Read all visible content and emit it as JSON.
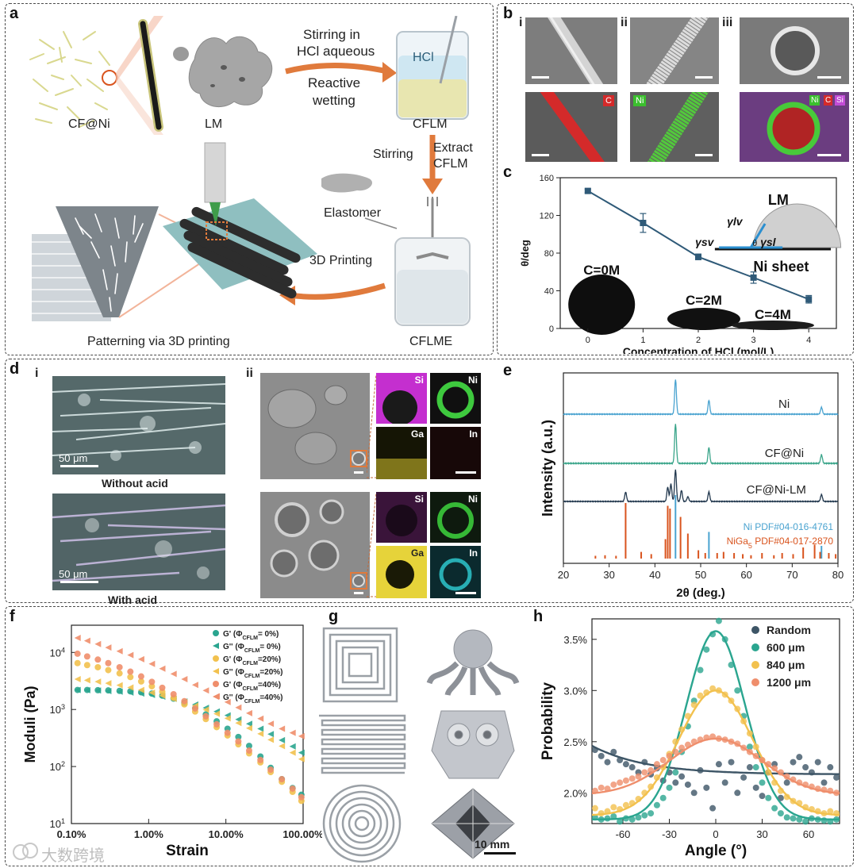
{
  "panels": {
    "a": {
      "label": "a",
      "item_cfni": "CF@Ni",
      "item_lm": "LM",
      "step1_line1": "Stirring in",
      "step1_line2": "HCl aqueous",
      "step1_line3": "Reactive",
      "step1_line4": "wetting",
      "beaker_label": "HCl",
      "item_cflm": "CFLM",
      "step2_left": "Stirring",
      "step2_right1": "Extract",
      "step2_right2": "CFLM",
      "item_elastomer": "Elastomer",
      "step3": "3D Printing",
      "item_cflme": "CFLME",
      "caption": "Patterning via 3D printing"
    },
    "b": {
      "label": "b",
      "sub_i": "i",
      "sub_ii": "ii",
      "sub_iii": "iii",
      "tag_c": "C",
      "tag_ni": "Ni",
      "tag_ni2": "Ni",
      "tag_c2": "C",
      "tag_si": "Si"
    },
    "c": {
      "label": "c",
      "inset_lm": "LM",
      "inset_glv": "γlv",
      "inset_gsv": "γsv",
      "inset_theta": "θ",
      "inset_gsl": "γsl",
      "inset_ni": "Ni sheet",
      "drop0": "C=0M",
      "drop2": "C=2M",
      "drop4": "C=4M"
    },
    "d": {
      "label": "d",
      "sub_i": "i",
      "sub_ii": "ii",
      "scale_top": "50 μm",
      "scale_bot": "50 μm",
      "cap_top": "Without acid",
      "cap_bot": "With acid",
      "map_si": "Si",
      "map_ni": "Ni",
      "map_ga": "Ga",
      "map_in": "In",
      "map_si2": "Si",
      "map_ni2": "Ni",
      "map_ga2": "Ga",
      "map_in2": "In"
    },
    "e": {
      "label": "e",
      "curve_ni": "Ni",
      "curve_cfni": "CF@Ni",
      "curve_cfnilm": "CF@Ni-LM",
      "ref_ni": "Ni PDF#04-016-4761",
      "ref_niga": "NiGa",
      "ref_niga_sub": "5",
      "ref_niga_tail": " PDF#04-017-2870"
    },
    "f": {
      "label": "f"
    },
    "g": {
      "label": "g",
      "scale": "10 mm"
    },
    "h": {
      "label": "h"
    }
  },
  "watermark": "大数跨境",
  "chart_data": [
    {
      "id": "c",
      "type": "line",
      "title": "",
      "xlabel": "Concentration of HCl (mol/L)",
      "ylabel": "θ/deg",
      "xlim": [
        -0.5,
        4.5
      ],
      "ylim": [
        0,
        160
      ],
      "xticks": [
        0,
        1,
        2,
        3,
        4
      ],
      "yticks": [
        0,
        40,
        80,
        120,
        160
      ],
      "x": [
        0,
        1,
        2,
        3,
        4
      ],
      "values": [
        146,
        112,
        76,
        54,
        31
      ],
      "errors": [
        2,
        10,
        3,
        6,
        4
      ],
      "color": "#2f5a78"
    },
    {
      "id": "e",
      "type": "line",
      "xlabel": "2θ (deg.)",
      "ylabel": "Intensity (a.u.)",
      "xlim": [
        20,
        80
      ],
      "xticks": [
        20,
        30,
        40,
        50,
        60,
        70,
        80
      ],
      "series": [
        {
          "name": "Ni",
          "color": "#4aa3d0",
          "peaks": [
            [
              44.5,
              1.0
            ],
            [
              51.8,
              0.4
            ],
            [
              76.4,
              0.2
            ]
          ]
        },
        {
          "name": "CF@Ni",
          "color": "#3aa58a",
          "peaks": [
            [
              44.5,
              1.0
            ],
            [
              51.8,
              0.4
            ],
            [
              76.4,
              0.22
            ]
          ]
        },
        {
          "name": "CF@Ni-LM",
          "color": "#22384e",
          "peaks": [
            [
              33.6,
              0.3
            ],
            [
              42.8,
              0.45
            ],
            [
              43.5,
              0.55
            ],
            [
              44.5,
              1.0
            ],
            [
              45.8,
              0.35
            ],
            [
              47.2,
              0.15
            ],
            [
              51.8,
              0.3
            ],
            [
              76.4,
              0.22
            ]
          ]
        }
      ],
      "references": [
        {
          "name": "Ni PDF#04-016-4761",
          "color": "#4aa3d0",
          "lines": [
            [
              44.5,
              1.0
            ],
            [
              51.8,
              0.42
            ],
            [
              76.4,
              0.2
            ]
          ]
        },
        {
          "name": "NiGa5 PDF#04-017-2870",
          "color": "#d9541e",
          "lines": [
            [
              27.0,
              0.05
            ],
            [
              29.1,
              0.06
            ],
            [
              31.5,
              0.05
            ],
            [
              33.6,
              1.0
            ],
            [
              37.0,
              0.12
            ],
            [
              39.2,
              0.08
            ],
            [
              42.3,
              0.35
            ],
            [
              42.8,
              0.95
            ],
            [
              43.3,
              0.9
            ],
            [
              45.6,
              0.75
            ],
            [
              47.2,
              0.45
            ],
            [
              49.5,
              0.15
            ],
            [
              51.0,
              0.1
            ],
            [
              53.6,
              0.1
            ],
            [
              55.0,
              0.12
            ],
            [
              57.3,
              0.1
            ],
            [
              59.2,
              0.08
            ],
            [
              61.0,
              0.06
            ],
            [
              63.4,
              0.1
            ],
            [
              66.0,
              0.06
            ],
            [
              67.8,
              0.1
            ],
            [
              70.2,
              0.08
            ],
            [
              72.4,
              0.2
            ],
            [
              74.9,
              0.25
            ],
            [
              76.1,
              0.12
            ],
            [
              78.0,
              0.1
            ],
            [
              79.5,
              0.08
            ]
          ]
        }
      ]
    },
    {
      "id": "f",
      "type": "scatter",
      "xlabel": "Strain",
      "ylabel": "Moduli (Pa)",
      "xscale": "log",
      "yscale": "log",
      "xlim": [
        0.1,
        100
      ],
      "ylim": [
        10,
        30000
      ],
      "xtick_labels": [
        "0.10%",
        "1.00%",
        "10.00%",
        "100.00%"
      ],
      "ytick_labels": [
        "10",
        "10",
        "10",
        "10"
      ],
      "ytick_exps": [
        "1",
        "2",
        "3",
        "4"
      ],
      "legend_position": "top-right",
      "x": [
        0.12,
        0.16,
        0.22,
        0.3,
        0.42,
        0.58,
        0.8,
        1.1,
        1.5,
        2.1,
        2.9,
        4.0,
        5.5,
        7.6,
        10.5,
        14.5,
        20,
        28,
        38,
        53,
        73,
        95
      ],
      "series": [
        {
          "name": "G' (ΦCFLM= 0%)",
          "label_main": "G' (Φ",
          "label_sub": "CFLM",
          "label_tail": "= 0%)",
          "marker": "circle",
          "color": "#2aa58f",
          "values": [
            2200,
            2200,
            2180,
            2160,
            2120,
            2080,
            2000,
            1900,
            1750,
            1550,
            1300,
            1050,
            820,
            620,
            460,
            330,
            230,
            150,
            95,
            60,
            42,
            32
          ]
        },
        {
          "name": "G'' (ΦCFLM= 0%)",
          "label_main": "G'' (Φ",
          "label_sub": "CFLM",
          "label_tail": "= 0%)",
          "marker": "triangle",
          "color": "#2aa58f",
          "values": [
            2200,
            2180,
            2150,
            2100,
            2050,
            1980,
            1900,
            1800,
            1680,
            1540,
            1380,
            1220,
            1070,
            920,
            790,
            670,
            560,
            460,
            370,
            290,
            225,
            175
          ]
        },
        {
          "name": "G' (ΦCFLM=20%)",
          "label_main": "G' (Φ",
          "label_sub": "CFLM",
          "label_tail": "=20%)",
          "marker": "circle",
          "color": "#f2c14e",
          "values": [
            6500,
            6000,
            5500,
            4900,
            4300,
            3700,
            3100,
            2550,
            2050,
            1600,
            1230,
            920,
            680,
            490,
            350,
            245,
            170,
            118,
            80,
            54,
            36,
            25
          ]
        },
        {
          "name": "G'' (ΦCFLM=20%)",
          "label_main": "G'' (Φ",
          "label_sub": "CFLM",
          "label_tail": "=20%)",
          "marker": "triangle",
          "color": "#f2c14e",
          "values": [
            3400,
            3250,
            3080,
            2880,
            2660,
            2430,
            2200,
            1970,
            1750,
            1540,
            1340,
            1160,
            990,
            840,
            700,
            580,
            470,
            375,
            295,
            228,
            175,
            135
          ]
        },
        {
          "name": "G' (ΦCFLM=40%)",
          "label_main": "G' (Φ",
          "label_sub": "CFLM",
          "label_tail": "=40%)",
          "marker": "circle",
          "color": "#ef8e6c",
          "values": [
            9500,
            8500,
            7500,
            6500,
            5500,
            4600,
            3800,
            3050,
            2400,
            1850,
            1400,
            1040,
            760,
            550,
            390,
            275,
            190,
            130,
            88,
            60,
            41,
            29
          ]
        },
        {
          "name": "G'' (ΦCFLM=40%)",
          "label_main": "G'' (Φ",
          "label_sub": "CFLM",
          "label_tail": "=40%)",
          "marker": "triangle",
          "color": "#ef8e6c",
          "values": [
            18000,
            16000,
            14000,
            12200,
            10500,
            9000,
            7600,
            6300,
            5200,
            4200,
            3400,
            2700,
            2150,
            1700,
            1350,
            1080,
            860,
            690,
            560,
            460,
            390,
            340
          ]
        }
      ]
    },
    {
      "id": "h",
      "type": "line",
      "xlabel": "Angle (°)",
      "ylabel": "Probability",
      "xlim": [
        -80,
        80
      ],
      "ylim": [
        1.7,
        3.7
      ],
      "xticks": [
        -60,
        -30,
        0,
        30,
        60
      ],
      "yticks": [
        2.0,
        2.5,
        3.0,
        3.5
      ],
      "ytick_labels": [
        "2.0%",
        "2.5%",
        "3.0%",
        "3.5%"
      ],
      "legend_position": "top-right",
      "series": [
        {
          "name": "Random",
          "color": "#3d5566",
          "model": "exp",
          "a": 2.18,
          "b": 0.28,
          "c": 35,
          "points_x": [
            -78,
            -74,
            -70,
            -66,
            -62,
            -58,
            -54,
            -50,
            -46,
            -42,
            -38,
            -34,
            -30,
            -26,
            -22,
            -18,
            -14,
            -10,
            -6,
            -2,
            2,
            6,
            10,
            14,
            18,
            22,
            26,
            30,
            34,
            38,
            42,
            46,
            50,
            54,
            58,
            62,
            66,
            70,
            74,
            78
          ],
          "points_y": [
            2.42,
            2.36,
            2.3,
            2.4,
            2.32,
            2.28,
            2.25,
            2.2,
            2.3,
            2.18,
            2.24,
            2.12,
            2.2,
            2.1,
            2.16,
            2.08,
            2.0,
            2.22,
            2.05,
            1.85,
            2.28,
            2.1,
            2.3,
            2.0,
            2.15,
            2.25,
            2.05,
            1.97,
            2.2,
            2.28,
            1.95,
            2.1,
            2.3,
            2.35,
            2.25,
            2.2,
            2.3,
            2.1,
            2.25,
            2.15
          ]
        },
        {
          "name": "600 μm",
          "color": "#2aa58f",
          "model": "gauss",
          "base": 1.74,
          "amp": 1.84,
          "sigma": 19,
          "points_x": [
            -78,
            -74,
            -70,
            -66,
            -62,
            -58,
            -54,
            -50,
            -46,
            -42,
            -38,
            -34,
            -30,
            -26,
            -22,
            -18,
            -14,
            -10,
            -6,
            -2,
            2,
            6,
            10,
            14,
            18,
            22,
            26,
            30,
            34,
            38,
            42,
            46,
            50,
            54,
            58,
            62,
            66,
            70,
            74,
            78
          ],
          "points_y": [
            1.76,
            1.74,
            1.75,
            1.77,
            1.72,
            1.75,
            1.74,
            1.76,
            1.78,
            1.8,
            1.88,
            1.95,
            2.05,
            2.2,
            2.4,
            2.65,
            2.9,
            3.2,
            3.4,
            3.55,
            3.68,
            3.5,
            3.25,
            3.0,
            2.75,
            2.45,
            2.25,
            2.1,
            1.95,
            1.85,
            1.8,
            1.76,
            1.75,
            1.74,
            1.72,
            1.75,
            1.74,
            1.73,
            1.72,
            1.74
          ]
        },
        {
          "name": "840 μm",
          "color": "#f2c14e",
          "model": "gauss",
          "base": 1.78,
          "amp": 1.22,
          "sigma": 24,
          "points_x": [
            -78,
            -74,
            -70,
            -66,
            -62,
            -58,
            -54,
            -50,
            -46,
            -42,
            -38,
            -34,
            -30,
            -26,
            -22,
            -18,
            -14,
            -10,
            -6,
            -2,
            2,
            6,
            10,
            14,
            18,
            22,
            26,
            30,
            34,
            38,
            42,
            46,
            50,
            54,
            58,
            62,
            66,
            70,
            74,
            78
          ],
          "points_y": [
            1.85,
            1.8,
            1.82,
            1.86,
            1.84,
            1.88,
            1.9,
            1.94,
            2.0,
            2.06,
            2.15,
            2.25,
            2.38,
            2.5,
            2.62,
            2.75,
            2.86,
            2.95,
            2.98,
            3.02,
            3.0,
            2.96,
            2.9,
            2.82,
            2.7,
            2.58,
            2.45,
            2.32,
            2.2,
            2.1,
            2.02,
            1.96,
            1.92,
            1.9,
            1.86,
            1.84,
            1.82,
            1.8,
            1.82,
            1.8
          ]
        },
        {
          "name": "1200 μm",
          "color": "#ef8e6c",
          "model": "gauss",
          "base": 1.98,
          "amp": 0.55,
          "sigma": 30,
          "points_x": [
            -78,
            -74,
            -70,
            -66,
            -62,
            -58,
            -54,
            -50,
            -46,
            -42,
            -38,
            -34,
            -30,
            -26,
            -22,
            -18,
            -14,
            -10,
            -6,
            -2,
            2,
            6,
            10,
            14,
            18,
            22,
            26,
            30,
            34,
            38,
            42,
            46,
            50,
            54,
            58,
            62,
            66,
            70,
            74,
            78
          ],
          "points_y": [
            2.02,
            2.05,
            2.04,
            2.08,
            2.1,
            2.12,
            2.14,
            2.16,
            2.2,
            2.22,
            2.28,
            2.32,
            2.36,
            2.4,
            2.44,
            2.47,
            2.5,
            2.52,
            2.54,
            2.55,
            2.53,
            2.52,
            2.5,
            2.48,
            2.44,
            2.4,
            2.36,
            2.32,
            2.28,
            2.24,
            2.2,
            2.16,
            2.13,
            2.1,
            2.08,
            2.06,
            2.04,
            2.03,
            2.02,
            2.0
          ]
        }
      ]
    }
  ]
}
